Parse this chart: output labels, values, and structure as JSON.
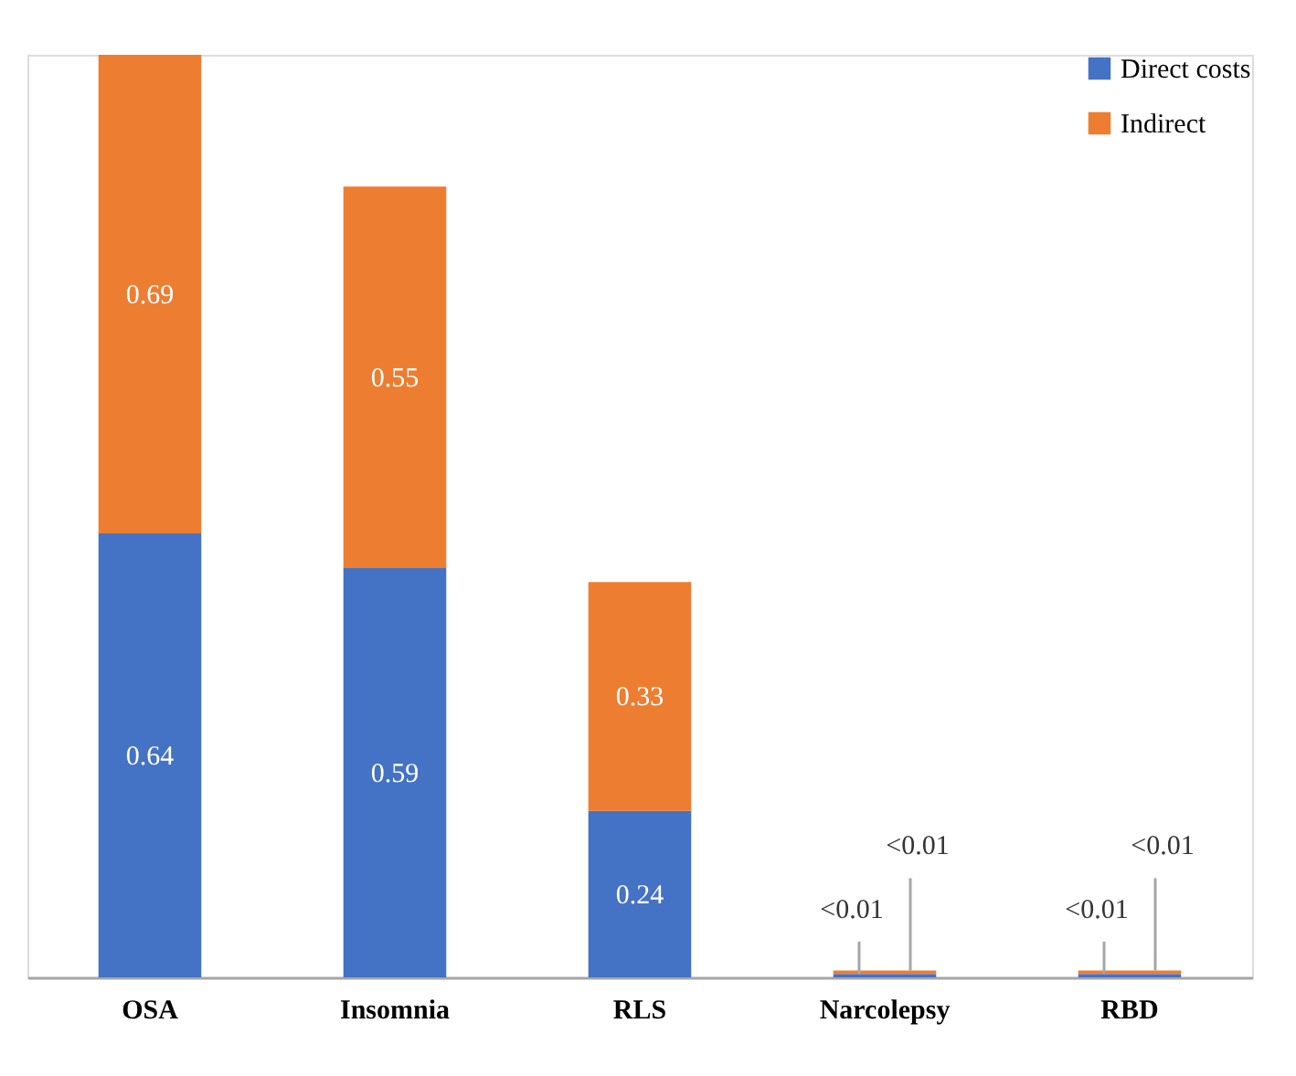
{
  "chart_data": {
    "type": "bar",
    "stacked": true,
    "categories": [
      "OSA",
      "Insomnia",
      "RLS",
      "Narcolepsy",
      "RBD"
    ],
    "series": [
      {
        "name": "Direct costs",
        "color": "#4472c4",
        "values": [
          0.64,
          0.59,
          0.24,
          0.005,
          0.005
        ],
        "value_labels": [
          "0.64",
          "0.59",
          "0.24",
          "<0.01",
          "<0.01"
        ]
      },
      {
        "name": "Indirect",
        "color": "#ed7d31",
        "values": [
          0.69,
          0.55,
          0.33,
          0.005,
          0.005
        ],
        "value_labels": [
          "0.69",
          "0.55",
          "0.33",
          "<0.01",
          "<0.01"
        ]
      }
    ],
    "legend": "top right"
  }
}
